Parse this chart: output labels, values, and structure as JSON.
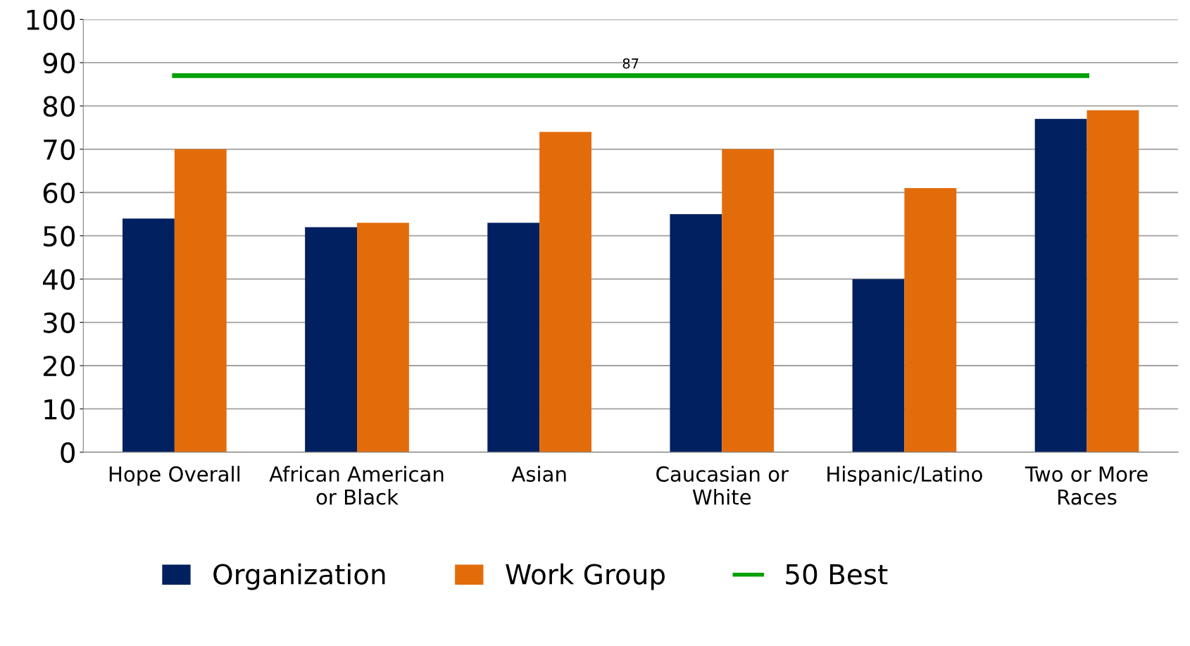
{
  "chart_data": {
    "type": "bar",
    "categories": [
      "Hope Overall",
      "African American or Black",
      "Asian",
      "Caucasian or White",
      "Hispanic/Latino",
      "Two or More Races"
    ],
    "series": [
      {
        "name": "Organization",
        "color": "#002060",
        "values": [
          54,
          52,
          53,
          55,
          40,
          77
        ]
      },
      {
        "name": "Work Group",
        "color": "#e36c0a",
        "values": [
          70,
          53,
          74,
          70,
          61,
          79
        ]
      },
      {
        "name": "50 Best",
        "type": "line",
        "color": "#00a000",
        "values": [
          87,
          87,
          87,
          87,
          87,
          87
        ]
      }
    ],
    "annotations": [
      "87"
    ],
    "ylim": [
      0,
      100
    ],
    "yticks": [
      0,
      10,
      20,
      30,
      40,
      50,
      60,
      70,
      80,
      90,
      100
    ],
    "grid": "y",
    "legend": "bottom",
    "marker": "none"
  }
}
